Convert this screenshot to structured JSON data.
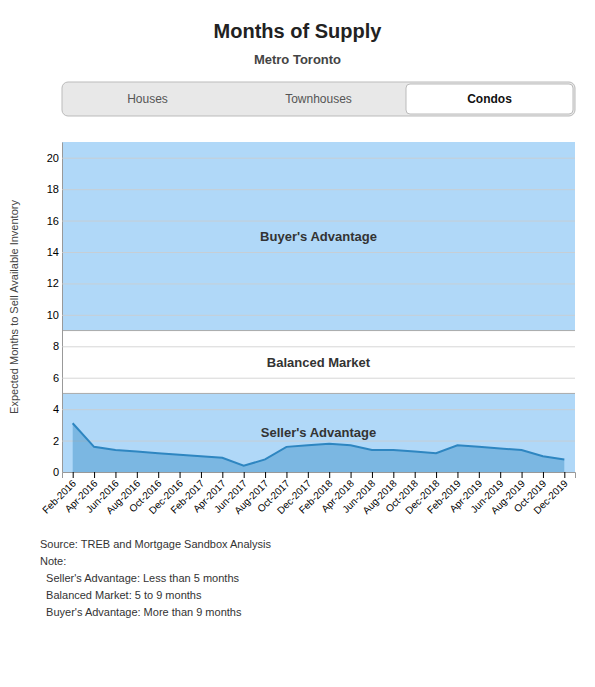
{
  "chart_data": {
    "type": "area",
    "title": "Months of Supply",
    "subtitle": "Metro Toronto",
    "y_label": "Expected Months to Sell Available Inventory",
    "tabs": [
      {
        "label": "Houses",
        "active": false
      },
      {
        "label": "Townhouses",
        "active": false
      },
      {
        "label": "Condos",
        "active": true
      }
    ],
    "categories": [
      "Feb-2016",
      "Apr-2016",
      "Jun-2016",
      "Aug-2016",
      "Oct-2016",
      "Dec-2016",
      "Feb-2017",
      "Apr-2017",
      "Jun-2017",
      "Aug-2017",
      "Oct-2017",
      "Dec-2017",
      "Feb-2018",
      "Apr-2018",
      "Jun-2018",
      "Aug-2018",
      "Oct-2018",
      "Dec-2018",
      "Feb-2019",
      "Apr-2019",
      "Jun-2019",
      "Aug-2019",
      "Oct-2019",
      "Dec-2019"
    ],
    "values": [
      3.1,
      1.6,
      1.4,
      1.3,
      1.2,
      1.1,
      1.0,
      0.9,
      0.4,
      0.8,
      1.6,
      1.7,
      1.8,
      1.7,
      1.4,
      1.4,
      1.3,
      1.2,
      1.7,
      1.6,
      1.5,
      1.4,
      1.0,
      0.8
    ],
    "color": "#2e86c1",
    "bands": [
      {
        "from": 0,
        "to": 5,
        "label": "Seller's Advantage",
        "color": "#b0d8f8"
      },
      {
        "from": 5,
        "to": 9,
        "label": "Balanced Market"
      },
      {
        "from": 9,
        "to": 21,
        "label": "Buyer's Advantage",
        "color": "#b0d8f8"
      }
    ],
    "ylim": [
      0,
      21
    ],
    "yticks": [
      0,
      2,
      4,
      6,
      8,
      10,
      12,
      14,
      16,
      18,
      20
    ],
    "grid": true,
    "notes": [
      "Source: TREB and Mortgage Sandbox Analysis",
      "Note:",
      "  Seller's Advantage: Less than 5 months",
      "  Balanced Market: 5 to 9 months",
      "  Buyer's Advantage: More than 9 months"
    ]
  }
}
